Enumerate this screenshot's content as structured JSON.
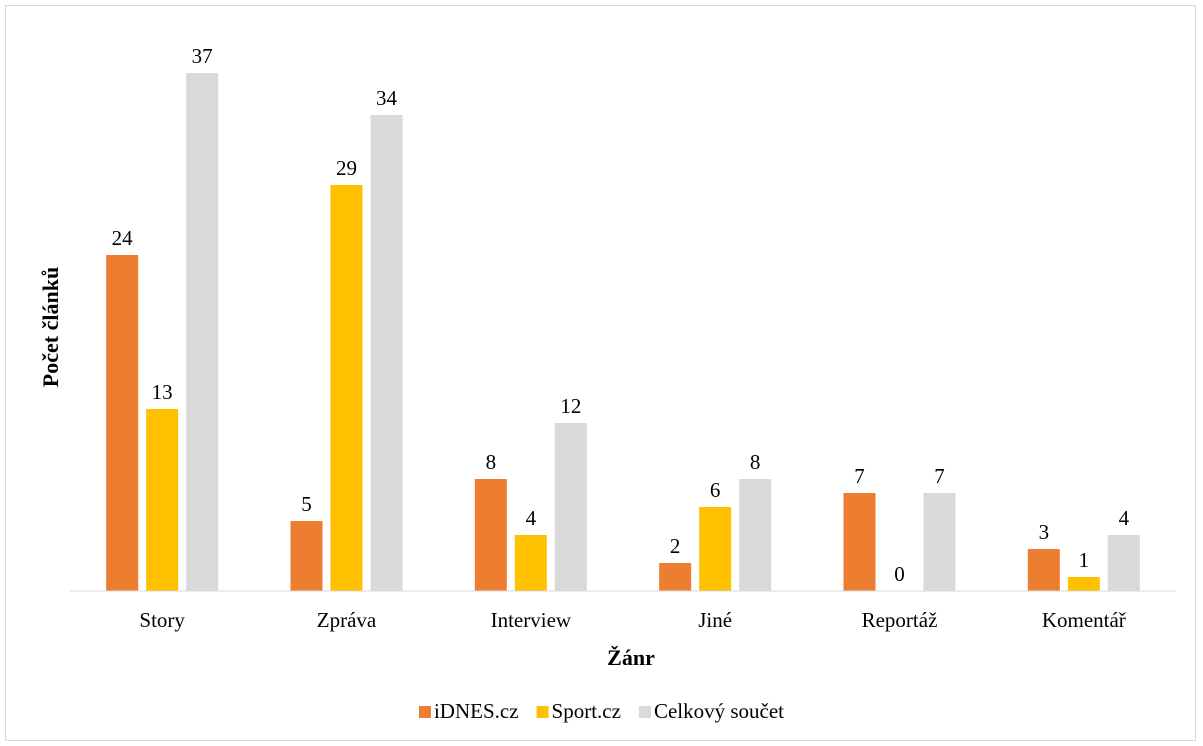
{
  "chart_data": {
    "type": "bar",
    "title": "",
    "xlabel": "Žánr",
    "ylabel": "Počet článků",
    "categories": [
      "Story",
      "Zpráva",
      "Interview",
      "Jiné",
      "Reportáž",
      "Komentář"
    ],
    "series": [
      {
        "name": "iDNES.cz",
        "color": "#ed7d31",
        "values": [
          24,
          5,
          8,
          2,
          7,
          3
        ]
      },
      {
        "name": "Sport.cz",
        "color": "#ffc000",
        "values": [
          13,
          29,
          4,
          6,
          0,
          1
        ]
      },
      {
        "name": "Celkový součet",
        "color": "#d9d9d9",
        "values": [
          37,
          34,
          12,
          8,
          7,
          4
        ]
      }
    ],
    "ylim": [
      0,
      37
    ],
    "grid": false,
    "legend_position": "bottom",
    "data_labels": true
  }
}
